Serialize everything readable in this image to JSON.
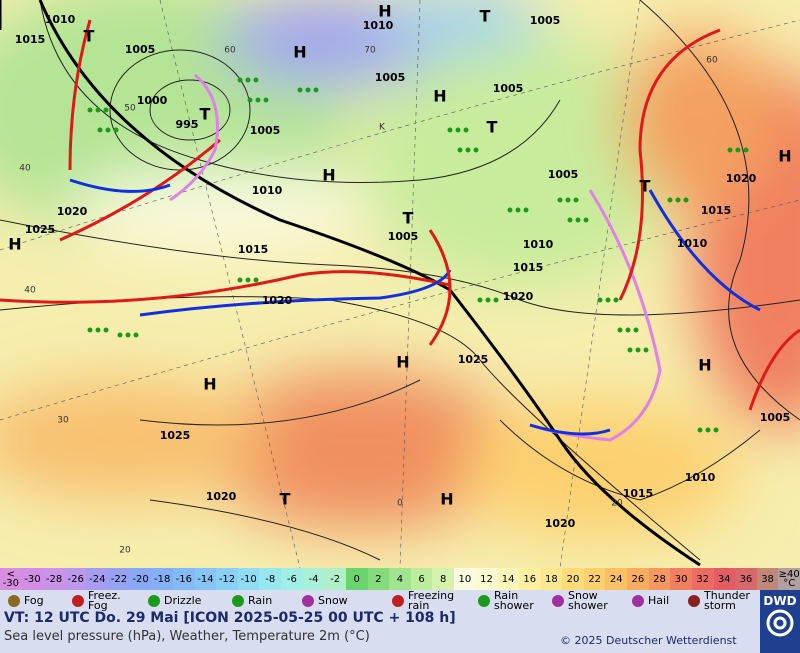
{
  "map": {
    "pressure_labels": [
      "1010",
      "1015",
      "1005",
      "1000",
      "995",
      "1005",
      "1010",
      "1020",
      "1025",
      "1015",
      "1020",
      "1025",
      "1020",
      "1010",
      "1005",
      "1005",
      "1005",
      "1005",
      "1005",
      "1010",
      "1015",
      "1020",
      "1025",
      "1020",
      "1015",
      "1010",
      "1015",
      "1010",
      "1020",
      "1005"
    ],
    "centers": [
      "H",
      "T",
      "H",
      "H",
      "T",
      "H",
      "T",
      "H",
      "T",
      "H",
      "H",
      "H",
      "H",
      "T",
      "H",
      "T",
      "T"
    ],
    "temp_labels": [
      "60",
      "70",
      "60",
      "50",
      "40",
      "40",
      "30",
      "20",
      "20",
      "0",
      "K"
    ]
  },
  "legend": {
    "scale": [
      {
        "label": "<\n-30",
        "color": "#d88ee0"
      },
      {
        "label": "-30",
        "color": "#d08ee6"
      },
      {
        "label": "-28",
        "color": "#c894e8"
      },
      {
        "label": "-26",
        "color": "#bb98ec"
      },
      {
        "label": "-24",
        "color": "#a89cf0"
      },
      {
        "label": "-22",
        "color": "#98a2f2"
      },
      {
        "label": "-20",
        "color": "#8aa8f4"
      },
      {
        "label": "-18",
        "color": "#84b0f6"
      },
      {
        "label": "-16",
        "color": "#84baf6"
      },
      {
        "label": "-14",
        "color": "#86c4f6"
      },
      {
        "label": "-12",
        "color": "#8ad0f4"
      },
      {
        "label": "-10",
        "color": "#90dcf2"
      },
      {
        "label": "-8",
        "color": "#98e6ee"
      },
      {
        "label": "-6",
        "color": "#a0eee6"
      },
      {
        "label": "-4",
        "color": "#a8f0d8"
      },
      {
        "label": "-2",
        "color": "#b0f0c8"
      },
      {
        "label": "0",
        "color": "#6cd46c"
      },
      {
        "label": "2",
        "color": "#84dc7c"
      },
      {
        "label": "4",
        "color": "#a0e490"
      },
      {
        "label": "6",
        "color": "#bcec9c"
      },
      {
        "label": "8",
        "color": "#d4f2ac"
      },
      {
        "label": "10",
        "color": "#fafae0"
      },
      {
        "label": "12",
        "color": "#fafad0"
      },
      {
        "label": "14",
        "color": "#fcf6b8"
      },
      {
        "label": "16",
        "color": "#fcf0a0"
      },
      {
        "label": "18",
        "color": "#fce88c"
      },
      {
        "label": "20",
        "color": "#fcdc78"
      },
      {
        "label": "22",
        "color": "#fcd06c"
      },
      {
        "label": "24",
        "color": "#fcc064"
      },
      {
        "label": "26",
        "color": "#f8ac60"
      },
      {
        "label": "28",
        "color": "#f49860"
      },
      {
        "label": "30",
        "color": "#f08060"
      },
      {
        "label": "32",
        "color": "#ec6c64"
      },
      {
        "label": "34",
        "color": "#e45c64"
      },
      {
        "label": "36",
        "color": "#d8686c"
      },
      {
        "label": "38",
        "color": "#c08878"
      },
      {
        "label": "≥40\n°C",
        "color": "#b0a0a0"
      }
    ],
    "weather": [
      "Fog",
      "Freez.\nFog",
      "Drizzle",
      "Rain",
      "Snow",
      "Freezing\nrain",
      "Rain\nshower",
      "Snow\nshower",
      "Hail",
      "Thunder\nstorm"
    ]
  },
  "footer": {
    "valid_time": "VT: 12 UTC Do.  29 Mai [ICON 2025-05-25  00 UTC + 108 h]",
    "description": "Sea level pressure (hPa), Weather, Temperature 2m (°C)",
    "copyright": "© 2025 Deutscher Wetterdienst",
    "logo": "DWD"
  }
}
